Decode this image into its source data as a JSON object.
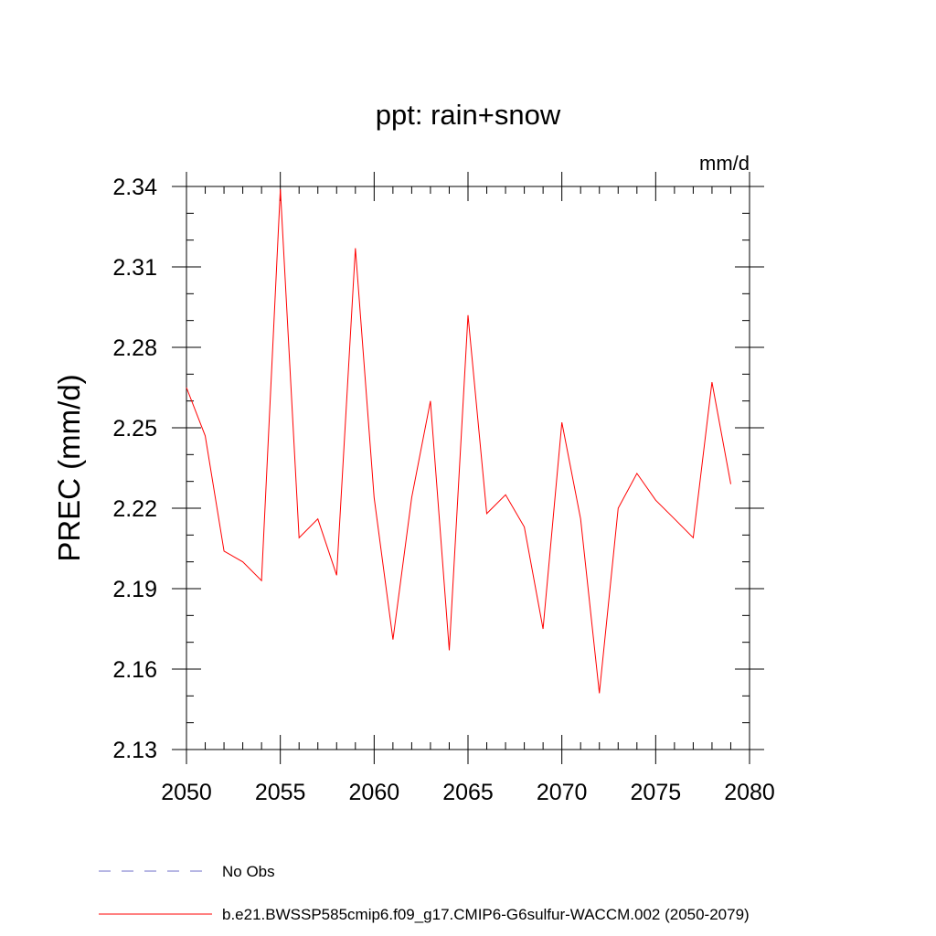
{
  "chart_data": {
    "type": "line",
    "title": "ppt: rain+snow",
    "units": "mm/d",
    "ylabel": "PREC  (mm/d)",
    "xlabel": "",
    "xlim": [
      2050,
      2080
    ],
    "ylim": [
      2.13,
      2.34
    ],
    "x_ticks": [
      2050,
      2055,
      2060,
      2065,
      2070,
      2075,
      2080
    ],
    "y_ticks": [
      2.34,
      2.31,
      2.28,
      2.25,
      2.22,
      2.19,
      2.16,
      2.13
    ],
    "x_tick_labels": [
      "2050",
      "2055",
      "2060",
      "2065",
      "2070",
      "2075",
      "2080"
    ],
    "y_tick_labels": [
      "2.34",
      "2.31",
      "2.28",
      "2.25",
      "2.22",
      "2.19",
      "2.16",
      "2.13"
    ],
    "grid": false,
    "legend_placement": "bottom-left",
    "series": [
      {
        "name": "b.e21.BWSSP585cmip6.f09_g17.CMIP6-G6sulfur-WACCM.002 (2050-2079)",
        "color": "#ff0000",
        "style": "solid",
        "x": [
          2050,
          2051,
          2052,
          2053,
          2054,
          2055,
          2056,
          2057,
          2058,
          2059,
          2060,
          2061,
          2062,
          2063,
          2064,
          2065,
          2066,
          2067,
          2068,
          2069,
          2070,
          2071,
          2072,
          2073,
          2074,
          2075,
          2076,
          2077,
          2078,
          2079
        ],
        "values": [
          2.265,
          2.247,
          2.204,
          2.2,
          2.193,
          2.339,
          2.209,
          2.216,
          2.195,
          2.317,
          2.224,
          2.171,
          2.224,
          2.26,
          2.167,
          2.292,
          2.218,
          2.225,
          2.213,
          2.175,
          2.252,
          2.216,
          2.151,
          2.22,
          2.233,
          2.223,
          2.216,
          2.209,
          2.267,
          2.229
        ]
      }
    ],
    "legend": [
      {
        "label": "No Obs",
        "color": "#6e6ec8",
        "style": "dashed"
      },
      {
        "label": "b.e21.BWSSP585cmip6.f09_g17.CMIP6-G6sulfur-WACCM.002 (2050-2079)",
        "color": "#ff0000",
        "style": "solid"
      }
    ]
  }
}
